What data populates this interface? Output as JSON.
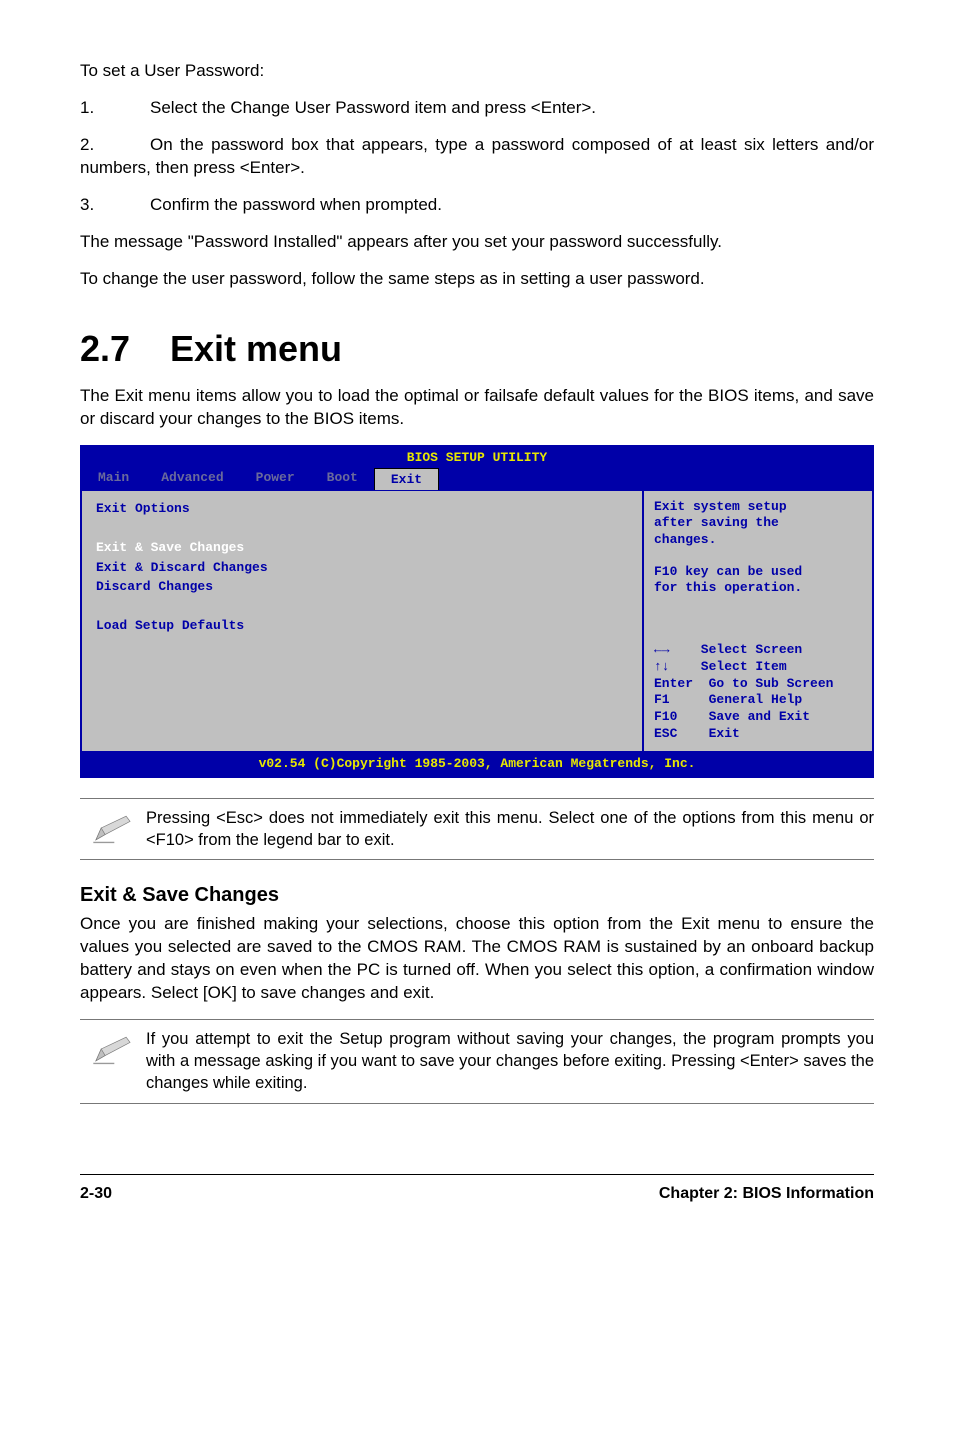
{
  "intro": {
    "lead": "To set a User Password:",
    "steps": [
      {
        "n": "1.",
        "t": "Select the Change User Password item and press <Enter>."
      },
      {
        "n": "2.",
        "t": "On the password box that appears, type a password composed of at least six letters and/or numbers, then press <Enter>."
      },
      {
        "n": "3.",
        "t": "Confirm the password when prompted."
      }
    ],
    "after1": "The message \"Password Installed\" appears after you set your password successfully.",
    "after2": "To change the user password, follow the same steps as in setting a user password."
  },
  "section": {
    "num": "2.7",
    "title": "Exit menu",
    "lead": "The Exit menu items allow you to load the optimal or failsafe default values for the BIOS items, and save or discard your changes to the BIOS items."
  },
  "bios": {
    "title": "BIOS SETUP UTILITY",
    "tabs": [
      "Main",
      "Advanced",
      "Power",
      "Boot",
      "Exit"
    ],
    "active_tab": 4,
    "left": {
      "header": "Exit Options",
      "items": [
        "Exit & Save Changes",
        "Exit & Discard Changes",
        "Discard Changes",
        "",
        "Load Setup Defaults"
      ],
      "selected_index": 0
    },
    "help": [
      "Exit system setup",
      "after saving the",
      "changes.",
      "",
      "F10 key can be used",
      "for this operation."
    ],
    "keys": [
      {
        "sym": "lr",
        "label": "Select Screen"
      },
      {
        "sym": "ud",
        "label": "Select Item"
      },
      {
        "sym": "Enter",
        "label": "Go to Sub Screen"
      },
      {
        "sym": "F1",
        "label": "General Help"
      },
      {
        "sym": "F10",
        "label": "Save and Exit"
      },
      {
        "sym": "ESC",
        "label": "Exit"
      }
    ],
    "footer": "v02.54 (C)Copyright 1985-2003, American Megatrends, Inc.",
    "colors": {
      "bg_body": "#c0c0c0",
      "blue": "#0000a8",
      "yellow": "#e8e800",
      "inactive_tab": "#6a6a9c",
      "sel_text": "#ffffff"
    }
  },
  "note1": "Pressing <Esc> does not immediately exit this menu. Select one of the options from this menu or <F10> from the legend bar to exit.",
  "exitsave": {
    "title": "Exit & Save Changes",
    "body": "Once you are finished making your selections, choose this option from the Exit menu to ensure the values you selected are saved to the CMOS RAM. The CMOS RAM is sustained by an onboard backup battery and stays on even when the PC is turned off. When you select this option, a confirmation window appears. Select [OK] to save changes and exit."
  },
  "note2": "If you attempt to exit the Setup program without saving your changes, the program prompts you with a message asking if you want to save your changes before exiting. Pressing <Enter> saves the changes while exiting.",
  "footer": {
    "page": "2-30",
    "chapter": "Chapter 2: BIOS Information"
  }
}
